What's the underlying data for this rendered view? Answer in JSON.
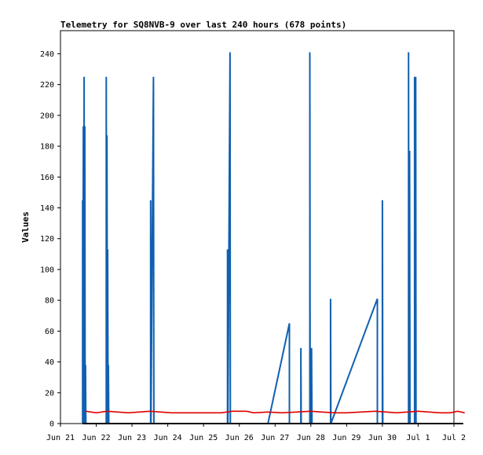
{
  "chart_data": {
    "type": "line",
    "title": "Telemetry for SQ8NVB-9 over last 240 hours (678 points)",
    "xlabel": "",
    "ylabel": "Values",
    "ylim": [
      0,
      255
    ],
    "xlim": [
      0,
      11
    ],
    "grid": false,
    "legend": "none",
    "x_ticks": [
      "Jun 21",
      "Jun 22",
      "Jun 23",
      "Jun 24",
      "Jun 25",
      "Jun 26",
      "Jun 27",
      "Jun 28",
      "Jun 29",
      "Jun 30",
      "Jul 1",
      "Jul 2"
    ],
    "y_ticks": [
      0,
      20,
      40,
      60,
      80,
      100,
      120,
      140,
      160,
      180,
      200,
      220,
      240
    ],
    "series": [
      {
        "color": "#1060b0",
        "points": [
          [
            0.62,
            0
          ],
          [
            0.62,
            145
          ],
          [
            0.63,
            0
          ],
          [
            0.64,
            193
          ],
          [
            0.65,
            0
          ],
          [
            0.66,
            225
          ],
          [
            0.67,
            0
          ],
          [
            0.68,
            193
          ],
          [
            0.69,
            0
          ],
          [
            0.7,
            38
          ],
          [
            0.71,
            0
          ],
          [
            1.28,
            0
          ],
          [
            1.28,
            225
          ],
          [
            1.29,
            0
          ],
          [
            1.3,
            187
          ],
          [
            1.31,
            0
          ],
          [
            1.32,
            113
          ],
          [
            1.33,
            0
          ],
          [
            1.34,
            38
          ],
          [
            1.35,
            0
          ],
          [
            2.52,
            0
          ],
          [
            2.52,
            145
          ],
          [
            2.53,
            0
          ],
          [
            2.6,
            225
          ],
          [
            2.61,
            0
          ],
          [
            4.67,
            0
          ],
          [
            4.67,
            113
          ],
          [
            4.68,
            0
          ],
          [
            4.74,
            241
          ],
          [
            4.75,
            0
          ],
          [
            5.8,
            0
          ],
          [
            6.4,
            65
          ],
          [
            6.4,
            0
          ],
          [
            6.72,
            0
          ],
          [
            6.72,
            49
          ],
          [
            6.73,
            0
          ],
          [
            6.97,
            0
          ],
          [
            6.97,
            241
          ],
          [
            6.98,
            0
          ],
          [
            7.02,
            0
          ],
          [
            7.02,
            49
          ],
          [
            7.03,
            0
          ],
          [
            7.55,
            0
          ],
          [
            7.55,
            81
          ],
          [
            7.56,
            0
          ],
          [
            8.86,
            81
          ],
          [
            8.86,
            0
          ],
          [
            9.0,
            0
          ],
          [
            9.0,
            145
          ],
          [
            9.01,
            0
          ],
          [
            9.73,
            0
          ],
          [
            9.73,
            241
          ],
          [
            9.74,
            0
          ],
          [
            9.76,
            177
          ],
          [
            9.77,
            0
          ],
          [
            9.9,
            0
          ],
          [
            9.9,
            225
          ],
          [
            9.91,
            0
          ],
          [
            9.93,
            225
          ],
          [
            9.94,
            0
          ]
        ]
      },
      {
        "color": "#e00000",
        "points": [
          [
            0.71,
            8
          ],
          [
            1.0,
            7
          ],
          [
            1.3,
            8
          ],
          [
            1.6,
            7.5
          ],
          [
            1.9,
            7
          ],
          [
            2.2,
            7.5
          ],
          [
            2.5,
            8
          ],
          [
            2.8,
            7.5
          ],
          [
            3.1,
            7
          ],
          [
            3.5,
            7
          ],
          [
            4.0,
            7
          ],
          [
            4.5,
            7
          ],
          [
            4.8,
            8
          ],
          [
            5.2,
            8
          ],
          [
            5.4,
            7
          ],
          [
            5.8,
            7.5
          ],
          [
            6.2,
            7
          ],
          [
            6.6,
            7.5
          ],
          [
            7.0,
            8
          ],
          [
            7.3,
            7.5
          ],
          [
            7.7,
            7
          ],
          [
            8.0,
            7
          ],
          [
            8.4,
            7.5
          ],
          [
            8.8,
            8
          ],
          [
            9.1,
            7.5
          ],
          [
            9.4,
            7
          ],
          [
            9.7,
            7.5
          ],
          [
            10.0,
            8
          ],
          [
            10.3,
            7.5
          ],
          [
            10.6,
            7
          ],
          [
            10.9,
            7
          ],
          [
            11.1,
            8
          ],
          [
            11.3,
            7
          ]
        ]
      },
      {
        "color": "#000000",
        "points": [
          [
            0.62,
            0
          ],
          [
            11.26,
            0
          ]
        ]
      }
    ]
  }
}
